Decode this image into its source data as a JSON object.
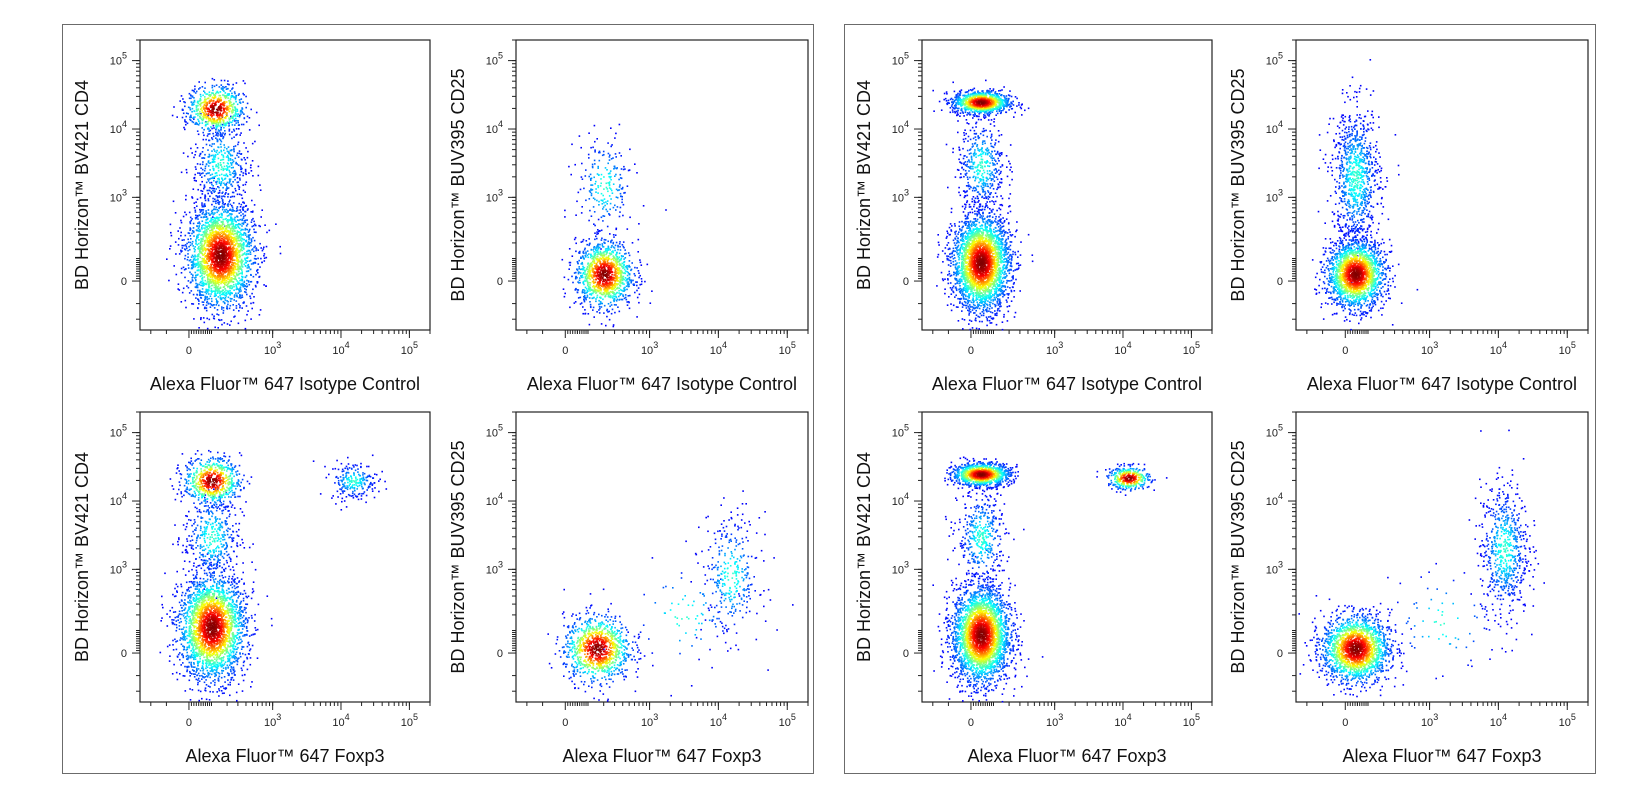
{
  "chart_data": [
    {
      "type": "scatter",
      "id": "plot-1",
      "xlabel": "Alexa Fluor™ 647 Isotype Control",
      "ylabel": "BD Horizon™ BV421 CD4",
      "x_ticks": [
        {
          "value": 0,
          "label": "0"
        },
        {
          "value": 1000,
          "label": "10",
          "exp": "3"
        },
        {
          "value": 10000,
          "label": "10",
          "exp": "4"
        },
        {
          "value": 100000,
          "label": "10",
          "exp": "5"
        }
      ],
      "y_ticks": [
        {
          "value": 0,
          "label": "0"
        },
        {
          "value": 1000,
          "label": "10",
          "exp": "3"
        },
        {
          "value": 10000,
          "label": "10",
          "exp": "4"
        },
        {
          "value": 100000,
          "label": "10",
          "exp": "5"
        }
      ],
      "x_scale": "biexponential",
      "y_scale": "biexponential",
      "xlim": [
        -300,
        200000
      ],
      "ylim": [
        -300,
        200000
      ],
      "populations": [
        {
          "x": 150,
          "y": 120,
          "sx": 0.35,
          "sy": 0.55,
          "n": 2600,
          "dense": true
        },
        {
          "x": 120,
          "y": 20000,
          "sx": 0.3,
          "sy": 0.25,
          "n": 650,
          "dense": true
        },
        {
          "x": 150,
          "y": 3000,
          "sx": 0.3,
          "sy": 0.5,
          "n": 450,
          "dense": false
        }
      ]
    },
    {
      "type": "scatter",
      "id": "plot-2",
      "xlabel": "Alexa Fluor™ 647 Isotype Control",
      "ylabel": "BD Horizon™ BUV395 CD25",
      "x_ticks": [
        {
          "value": 0,
          "label": "0"
        },
        {
          "value": 1000,
          "label": "10",
          "exp": "3"
        },
        {
          "value": 10000,
          "label": "10",
          "exp": "4"
        },
        {
          "value": 100000,
          "label": "10",
          "exp": "5"
        }
      ],
      "y_ticks": [
        {
          "value": 0,
          "label": "0"
        },
        {
          "value": 1000,
          "label": "10",
          "exp": "3"
        },
        {
          "value": 10000,
          "label": "10",
          "exp": "4"
        },
        {
          "value": 100000,
          "label": "10",
          "exp": "5"
        }
      ],
      "x_scale": "biexponential",
      "y_scale": "biexponential",
      "xlim": [
        -300,
        200000
      ],
      "ylim": [
        -300,
        200000
      ],
      "populations": [
        {
          "x": 200,
          "y": 30,
          "sx": 0.3,
          "sy": 0.35,
          "n": 1200,
          "dense": true
        },
        {
          "x": 200,
          "y": 1500,
          "sx": 0.3,
          "sy": 0.55,
          "n": 220,
          "dense": false
        }
      ]
    },
    {
      "type": "scatter",
      "id": "plot-3",
      "xlabel": "Alexa Fluor™ 647 Foxp3",
      "ylabel": "BD Horizon™ BV421 CD4",
      "x_ticks": [
        {
          "value": 0,
          "label": "0"
        },
        {
          "value": 1000,
          "label": "10",
          "exp": "3"
        },
        {
          "value": 10000,
          "label": "10",
          "exp": "4"
        },
        {
          "value": 100000,
          "label": "10",
          "exp": "5"
        }
      ],
      "y_ticks": [
        {
          "value": 0,
          "label": "0"
        },
        {
          "value": 1000,
          "label": "10",
          "exp": "3"
        },
        {
          "value": 10000,
          "label": "10",
          "exp": "4"
        },
        {
          "value": 100000,
          "label": "10",
          "exp": "5"
        }
      ],
      "x_scale": "biexponential",
      "y_scale": "biexponential",
      "xlim": [
        -300,
        200000
      ],
      "ylim": [
        -300,
        200000
      ],
      "populations": [
        {
          "x": 100,
          "y": 120,
          "sx": 0.35,
          "sy": 0.55,
          "n": 2600,
          "dense": true
        },
        {
          "x": 100,
          "y": 20000,
          "sx": 0.3,
          "sy": 0.25,
          "n": 650,
          "dense": true
        },
        {
          "x": 100,
          "y": 3000,
          "sx": 0.3,
          "sy": 0.5,
          "n": 400,
          "dense": false
        },
        {
          "x": 15000,
          "y": 20000,
          "sx": 0.25,
          "sy": 0.2,
          "n": 220,
          "dense": false
        }
      ]
    },
    {
      "type": "scatter",
      "id": "plot-4",
      "xlabel": "Alexa Fluor™ 647 Foxp3",
      "ylabel": "BD Horizon™ BUV395 CD25",
      "x_ticks": [
        {
          "value": 0,
          "label": "0"
        },
        {
          "value": 1000,
          "label": "10",
          "exp": "3"
        },
        {
          "value": 10000,
          "label": "10",
          "exp": "4"
        },
        {
          "value": 100000,
          "label": "10",
          "exp": "5"
        }
      ],
      "y_ticks": [
        {
          "value": 0,
          "label": "0"
        },
        {
          "value": 1000,
          "label": "10",
          "exp": "3"
        },
        {
          "value": 10000,
          "label": "10",
          "exp": "4"
        },
        {
          "value": 100000,
          "label": "10",
          "exp": "5"
        }
      ],
      "x_scale": "biexponential",
      "y_scale": "biexponential",
      "xlim": [
        -300,
        200000
      ],
      "ylim": [
        -300,
        200000
      ],
      "populations": [
        {
          "x": 150,
          "y": 20,
          "sx": 0.35,
          "sy": 0.35,
          "n": 1000,
          "dense": true
        },
        {
          "x": 15000,
          "y": 800,
          "sx": 0.3,
          "sy": 0.65,
          "n": 320,
          "dense": false
        },
        {
          "x": 3000,
          "y": 200,
          "sx": 0.6,
          "sy": 0.6,
          "n": 70,
          "dense": false
        }
      ]
    },
    {
      "type": "scatter",
      "id": "plot-5",
      "xlabel": "Alexa Fluor™ 647 Isotype Control",
      "ylabel": "BD Horizon™ BV421 CD4",
      "x_ticks": [
        {
          "value": 0,
          "label": "0"
        },
        {
          "value": 1000,
          "label": "10",
          "exp": "3"
        },
        {
          "value": 10000,
          "label": "10",
          "exp": "4"
        },
        {
          "value": 100000,
          "label": "10",
          "exp": "5"
        }
      ],
      "y_ticks": [
        {
          "value": 0,
          "label": "0"
        },
        {
          "value": 1000,
          "label": "10",
          "exp": "3"
        },
        {
          "value": 10000,
          "label": "10",
          "exp": "4"
        },
        {
          "value": 100000,
          "label": "10",
          "exp": "5"
        }
      ],
      "x_scale": "biexponential",
      "y_scale": "biexponential",
      "xlim": [
        -300,
        200000
      ],
      "ylim": [
        -300,
        200000
      ],
      "populations": [
        {
          "x": 40,
          "y": 80,
          "sx": 0.3,
          "sy": 0.5,
          "n": 3000,
          "dense": true
        },
        {
          "x": 40,
          "y": 25000,
          "sx": 0.3,
          "sy": 0.12,
          "n": 1100,
          "dense": true
        },
        {
          "x": 40,
          "y": 3000,
          "sx": 0.25,
          "sy": 0.5,
          "n": 450,
          "dense": false
        }
      ]
    },
    {
      "type": "scatter",
      "id": "plot-6",
      "xlabel": "Alexa Fluor™ 647 Isotype Control",
      "ylabel": "BD Horizon™ BUV395 CD25",
      "x_ticks": [
        {
          "value": 0,
          "label": "0"
        },
        {
          "value": 1000,
          "label": "10",
          "exp": "3"
        },
        {
          "value": 10000,
          "label": "10",
          "exp": "4"
        },
        {
          "value": 100000,
          "label": "10",
          "exp": "5"
        }
      ],
      "y_ticks": [
        {
          "value": 0,
          "label": "0"
        },
        {
          "value": 1000,
          "label": "10",
          "exp": "3"
        },
        {
          "value": 10000,
          "label": "10",
          "exp": "4"
        },
        {
          "value": 100000,
          "label": "10",
          "exp": "5"
        }
      ],
      "x_scale": "biexponential",
      "y_scale": "biexponential",
      "xlim": [
        -300,
        200000
      ],
      "ylim": [
        -300,
        200000
      ],
      "populations": [
        {
          "x": 40,
          "y": 30,
          "sx": 0.3,
          "sy": 0.35,
          "n": 2000,
          "dense": true
        },
        {
          "x": 40,
          "y": 2000,
          "sx": 0.25,
          "sy": 0.75,
          "n": 900,
          "dense": false
        }
      ]
    },
    {
      "type": "scatter",
      "id": "plot-7",
      "xlabel": "Alexa Fluor™ 647 Foxp3",
      "ylabel": "BD Horizon™ BV421 CD4",
      "x_ticks": [
        {
          "value": 0,
          "label": "0"
        },
        {
          "value": 1000,
          "label": "10",
          "exp": "3"
        },
        {
          "value": 10000,
          "label": "10",
          "exp": "4"
        },
        {
          "value": 100000,
          "label": "10",
          "exp": "5"
        }
      ],
      "y_ticks": [
        {
          "value": 0,
          "label": "0"
        },
        {
          "value": 1000,
          "label": "10",
          "exp": "3"
        },
        {
          "value": 10000,
          "label": "10",
          "exp": "4"
        },
        {
          "value": 100000,
          "label": "10",
          "exp": "5"
        }
      ],
      "x_scale": "biexponential",
      "y_scale": "biexponential",
      "xlim": [
        -300,
        200000
      ],
      "ylim": [
        -300,
        200000
      ],
      "populations": [
        {
          "x": 40,
          "y": 80,
          "sx": 0.3,
          "sy": 0.5,
          "n": 3000,
          "dense": true
        },
        {
          "x": 40,
          "y": 25000,
          "sx": 0.3,
          "sy": 0.12,
          "n": 1100,
          "dense": true
        },
        {
          "x": 40,
          "y": 3000,
          "sx": 0.25,
          "sy": 0.5,
          "n": 400,
          "dense": false
        },
        {
          "x": 12000,
          "y": 22000,
          "sx": 0.22,
          "sy": 0.12,
          "n": 380,
          "dense": true
        }
      ]
    },
    {
      "type": "scatter",
      "id": "plot-8",
      "xlabel": "Alexa Fluor™ 647 Foxp3",
      "ylabel": "BD Horizon™ BUV395 CD25",
      "x_ticks": [
        {
          "value": 0,
          "label": "0"
        },
        {
          "value": 1000,
          "label": "10",
          "exp": "3"
        },
        {
          "value": 10000,
          "label": "10",
          "exp": "4"
        },
        {
          "value": 100000,
          "label": "10",
          "exp": "5"
        }
      ],
      "y_ticks": [
        {
          "value": 0,
          "label": "0"
        },
        {
          "value": 1000,
          "label": "10",
          "exp": "3"
        },
        {
          "value": 10000,
          "label": "10",
          "exp": "4"
        },
        {
          "value": 100000,
          "label": "10",
          "exp": "5"
        }
      ],
      "x_scale": "biexponential",
      "y_scale": "biexponential",
      "xlim": [
        -300,
        200000
      ],
      "ylim": [
        -300,
        200000
      ],
      "populations": [
        {
          "x": 40,
          "y": 20,
          "sx": 0.35,
          "sy": 0.35,
          "n": 1900,
          "dense": true
        },
        {
          "x": 12000,
          "y": 2000,
          "sx": 0.25,
          "sy": 0.7,
          "n": 650,
          "dense": false
        },
        {
          "x": 1500,
          "y": 150,
          "sx": 0.6,
          "sy": 0.6,
          "n": 70,
          "dense": false
        }
      ]
    }
  ]
}
